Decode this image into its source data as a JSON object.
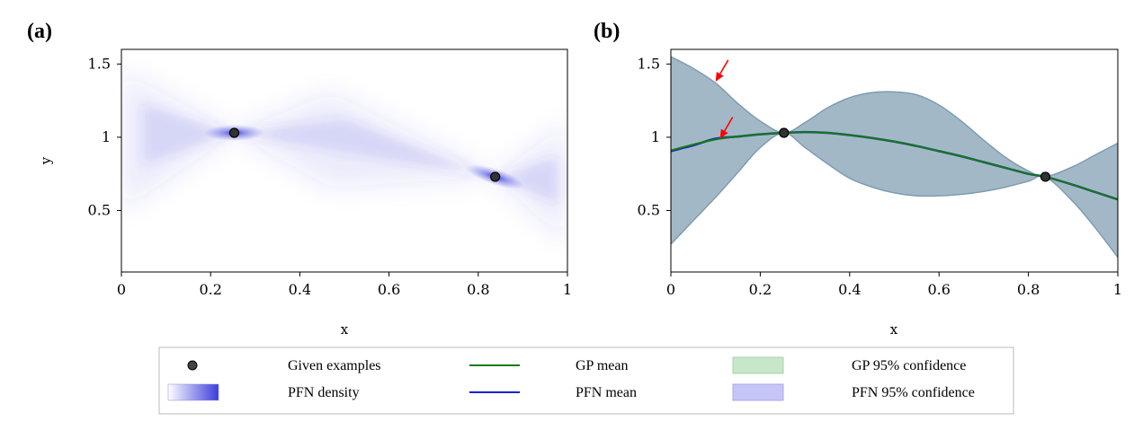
{
  "chart_data": [
    {
      "panel_label": "(a)",
      "type": "heatmap",
      "xlabel": "x",
      "ylabel": "y",
      "xlim": [
        0,
        1
      ],
      "ylim": [
        0.08,
        1.6
      ],
      "x_ticks": [
        0,
        0.2,
        0.4,
        0.6,
        0.8,
        1
      ],
      "x_tick_labels": [
        "0",
        "0.2",
        "0.4",
        "0.6",
        "0.8",
        "1"
      ],
      "y_ticks": [
        0.5,
        1,
        1.5
      ],
      "y_tick_labels": [
        "0.5",
        "1",
        "1.5"
      ],
      "given_examples": [
        {
          "x": 0.253,
          "y": 1.03
        },
        {
          "x": 0.838,
          "y": 0.73
        }
      ],
      "density_series": "PFN density"
    },
    {
      "panel_label": "(b)",
      "type": "line",
      "xlabel": "x",
      "ylabel": "",
      "xlim": [
        0,
        1
      ],
      "ylim": [
        0.08,
        1.6
      ],
      "x_ticks": [
        0,
        0.2,
        0.4,
        0.6,
        0.8,
        1
      ],
      "x_tick_labels": [
        "0",
        "0.2",
        "0.4",
        "0.6",
        "0.8",
        "1"
      ],
      "y_ticks": [
        0.5,
        1,
        1.5
      ],
      "y_tick_labels": [
        "0.5",
        "1",
        "1.5"
      ],
      "given_examples": [
        {
          "x": 0.253,
          "y": 1.03
        },
        {
          "x": 0.838,
          "y": 0.73
        }
      ],
      "x": [
        0,
        0.05,
        0.1,
        0.15,
        0.2,
        0.253,
        0.3,
        0.35,
        0.4,
        0.45,
        0.5,
        0.55,
        0.6,
        0.65,
        0.7,
        0.75,
        0.8,
        0.838,
        0.9,
        0.95,
        1
      ],
      "series": [
        {
          "name": "GP mean",
          "values": [
            0.91,
            0.95,
            0.985,
            1.005,
            1.02,
            1.03,
            1.035,
            1.03,
            1.015,
            0.995,
            0.97,
            0.94,
            0.905,
            0.87,
            0.83,
            0.79,
            0.75,
            0.73,
            0.675,
            0.625,
            0.575
          ]
        },
        {
          "name": "PFN mean",
          "values": [
            0.905,
            0.945,
            0.99,
            1.005,
            1.02,
            1.03,
            1.035,
            1.03,
            1.015,
            0.995,
            0.97,
            0.94,
            0.905,
            0.87,
            0.83,
            0.79,
            0.75,
            0.73,
            0.675,
            0.625,
            0.575
          ]
        },
        {
          "name": "95% confidence upper",
          "values": [
            1.55,
            1.47,
            1.37,
            1.23,
            1.11,
            1.03,
            1.1,
            1.2,
            1.27,
            1.305,
            1.31,
            1.29,
            1.22,
            1.11,
            0.98,
            0.86,
            0.77,
            0.73,
            0.8,
            0.88,
            0.96
          ]
        },
        {
          "name": "95% confidence lower",
          "values": [
            0.27,
            0.43,
            0.59,
            0.76,
            0.93,
            1.03,
            0.93,
            0.82,
            0.72,
            0.66,
            0.62,
            0.6,
            0.6,
            0.61,
            0.63,
            0.66,
            0.7,
            0.73,
            0.56,
            0.38,
            0.18
          ]
        }
      ],
      "annotations": [
        {
          "type": "arrow",
          "color": "#ff0000",
          "target_x": 0.1,
          "target_y": 1.38
        },
        {
          "type": "arrow",
          "color": "#ff0000",
          "target_x": 0.11,
          "target_y": 0.99
        }
      ]
    }
  ],
  "legend": {
    "items": [
      {
        "label": "Given examples",
        "kind": "marker"
      },
      {
        "label": "GP mean",
        "kind": "line",
        "color": "#127c12"
      },
      {
        "label": "GP 95% confidence",
        "kind": "patch",
        "color": "#c8e6c9"
      },
      {
        "label": "PFN density",
        "kind": "gradient",
        "color": "#4a4ae0"
      },
      {
        "label": "PFN mean",
        "kind": "line",
        "color": "#1f1fd0"
      },
      {
        "label": "PFN 95% confidence",
        "kind": "patch",
        "color": "#c6c6f6"
      }
    ]
  },
  "colors": {
    "band_fill": "#a3b8c6",
    "band_edge": "#7f9cb0",
    "density": "#3c3cdc",
    "marker": "#222222",
    "arrow": "#ff0000"
  }
}
